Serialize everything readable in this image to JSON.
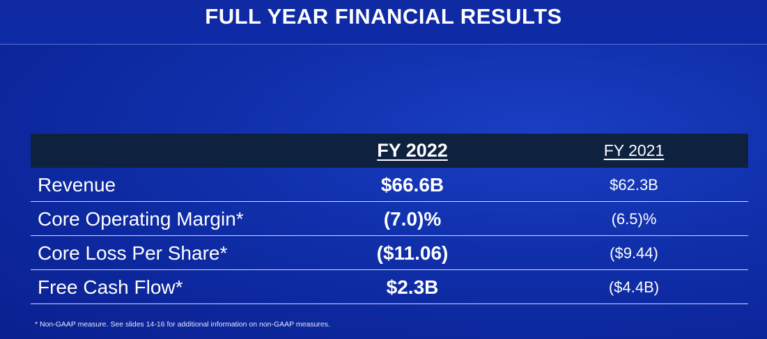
{
  "title": "FULL YEAR FINANCIAL RESULTS",
  "table": {
    "headers": {
      "fy2022": "FY 2022",
      "fy2021": "FY 2021"
    },
    "rows": [
      {
        "label": "Revenue",
        "fy2022": "$66.6B",
        "fy2021": "$62.3B"
      },
      {
        "label": "Core Operating Margin*",
        "fy2022": "(7.0)%",
        "fy2021": "(6.5)%"
      },
      {
        "label": "Core Loss Per Share*",
        "fy2022": "($11.06)",
        "fy2021": "($9.44)"
      },
      {
        "label": "Free Cash Flow*",
        "fy2022": "$2.3B",
        "fy2021": "($4.4B)"
      }
    ]
  },
  "footnote": "* Non-GAAP measure. See slides 14-16 for additional information on non-GAAP measures.",
  "colors": {
    "background": "#0f2ea8",
    "header_band": "#0e2240",
    "text": "#ffffff",
    "divider": "#d8dcec"
  }
}
